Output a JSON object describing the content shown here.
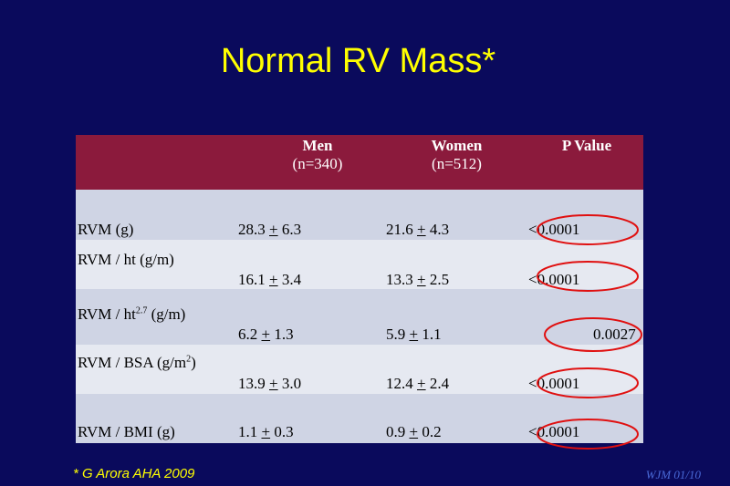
{
  "title": "Normal RV Mass*",
  "table": {
    "headers": [
      {
        "line1": "Men",
        "line2": "(n=340)"
      },
      {
        "line1": "Women",
        "line2": "(n=512)"
      },
      {
        "line1": "P Value",
        "line2": ""
      }
    ],
    "rows": [
      {
        "label": "RVM (g)",
        "label_sup": "",
        "label_suffix": "",
        "men_mean": "28.3",
        "men_sd": "6.3",
        "women_mean": "21.6",
        "women_sd": "4.3",
        "p": "<0.0001"
      },
      {
        "label": "RVM / ht  (g/m)",
        "label_sup": "",
        "label_suffix": "",
        "men_mean": "16.1",
        "men_sd": "3.4",
        "women_mean": "13.3",
        "women_sd": "2.5",
        "p": "<0.0001"
      },
      {
        "label": "RVM / ht",
        "label_sup": "2.7",
        "label_suffix": " (g/m)",
        "men_mean": "6.2",
        "men_sd": "1.3",
        "women_mean": "5.9",
        "women_sd": "1.1",
        "p": "0.0027"
      },
      {
        "label": "RVM / BSA (g/m",
        "label_sup": "2",
        "label_suffix": ")",
        "men_mean": "13.9",
        "men_sd": "3.0",
        "women_mean": "12.4",
        "women_sd": "2.4",
        "p": "<0.0001"
      },
      {
        "label": "RVM / BMI (g)",
        "label_sup": "",
        "label_suffix": "",
        "men_mean": "1.1",
        "men_sd": "0.3",
        "women_mean": "0.9",
        "women_sd": "0.2",
        "p": "<0.0001"
      }
    ],
    "pm_symbol": "+"
  },
  "footer": {
    "citation": "* G Arora AHA 2009",
    "tag": "WJM 01/10"
  },
  "colors": {
    "background": "#0a0a5c",
    "title": "#ffff00",
    "header": "#8b1a3c",
    "row_dark": "#cfd4e4",
    "row_light": "#e6e9f1",
    "oval": "#e01010"
  }
}
